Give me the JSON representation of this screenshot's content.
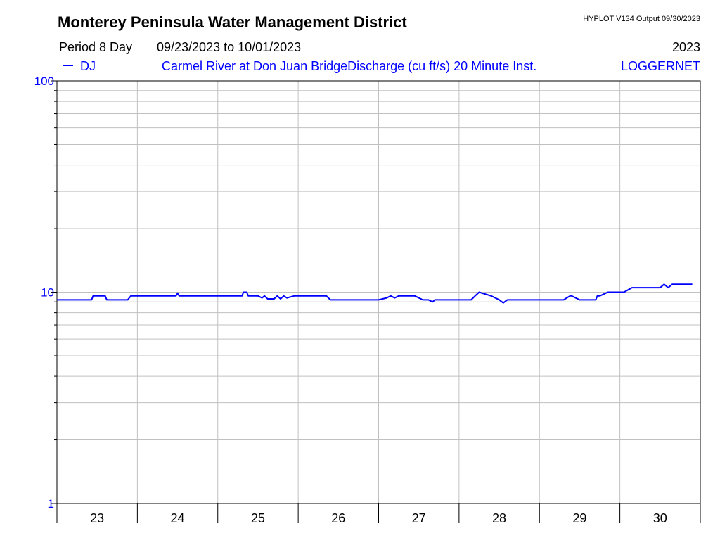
{
  "header": {
    "title": "Monterey Peninsula Water Management District",
    "program": "HYPLOT V134  Output 09/30/2023",
    "period_label": "Period 8 Day",
    "date_range": "09/23/2023  to  10/01/2023",
    "year": "2023",
    "series_code": "DJ",
    "station": "Carmel River at Don Juan BridgeDischarge (cu ft/s)   20 Minute Inst.",
    "source": "LOGGERNET"
  },
  "colors": {
    "series": "#0000ff",
    "grid": "#c0c0c0",
    "axis": "#000000"
  },
  "chart_data": {
    "type": "line",
    "title": "Monterey Peninsula Water Management District",
    "ylabel": "Discharge (cu ft/s)",
    "yscale": "log",
    "ylim": [
      1,
      100
    ],
    "y_tick_labels": [
      "1",
      "10",
      "100"
    ],
    "xlim": [
      23,
      31
    ],
    "x_tick_labels": [
      "23",
      "24",
      "25",
      "26",
      "27",
      "28",
      "29",
      "30"
    ],
    "grid": true,
    "series": [
      {
        "name": "DJ",
        "x": [
          23.0,
          23.43,
          23.45,
          23.6,
          23.62,
          23.88,
          23.92,
          24.48,
          24.5,
          24.52,
          25.3,
          25.32,
          25.36,
          25.38,
          25.5,
          25.55,
          25.58,
          25.62,
          25.7,
          25.74,
          25.78,
          25.82,
          25.86,
          25.95,
          26.0,
          26.35,
          26.4,
          26.5,
          27.0,
          27.1,
          27.15,
          27.2,
          27.25,
          27.35,
          27.45,
          27.55,
          27.62,
          27.67,
          27.7,
          28.0,
          28.1,
          28.15,
          28.2,
          28.25,
          28.4,
          28.5,
          28.55,
          28.6,
          28.7,
          29.0,
          29.1,
          29.3,
          29.38,
          29.4,
          29.5,
          29.7,
          29.72,
          29.75,
          29.85,
          29.9,
          29.95,
          30.05,
          30.15,
          30.2,
          30.25,
          30.5,
          30.55,
          30.6,
          30.65,
          30.9
        ],
        "y": [
          9.2,
          9.2,
          9.6,
          9.6,
          9.2,
          9.2,
          9.6,
          9.6,
          9.9,
          9.6,
          9.6,
          10.0,
          10.0,
          9.6,
          9.6,
          9.4,
          9.6,
          9.3,
          9.3,
          9.6,
          9.3,
          9.6,
          9.4,
          9.6,
          9.6,
          9.6,
          9.2,
          9.2,
          9.2,
          9.4,
          9.6,
          9.4,
          9.6,
          9.6,
          9.6,
          9.2,
          9.2,
          9.0,
          9.2,
          9.2,
          9.2,
          9.2,
          9.6,
          10.0,
          9.6,
          9.2,
          8.9,
          9.2,
          9.2,
          9.2,
          9.2,
          9.2,
          9.6,
          9.6,
          9.2,
          9.2,
          9.6,
          9.6,
          10.0,
          10.0,
          10.0,
          10.0,
          10.5,
          10.5,
          10.5,
          10.5,
          10.9,
          10.5,
          10.9,
          10.9
        ]
      }
    ]
  }
}
